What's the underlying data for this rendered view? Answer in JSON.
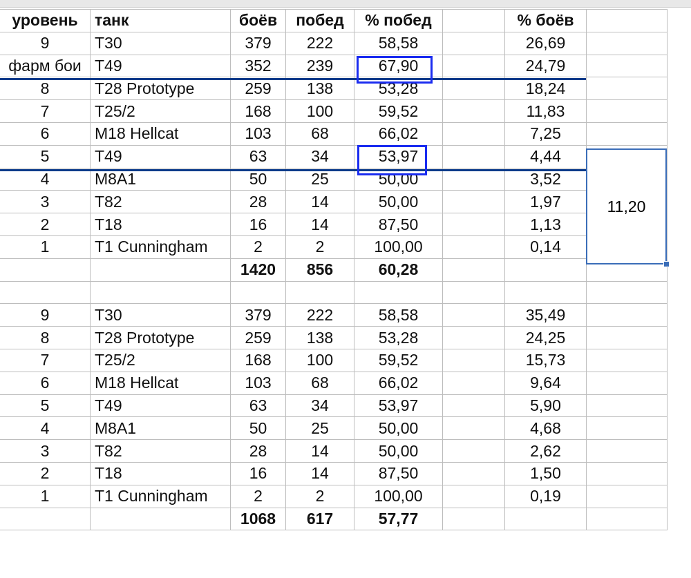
{
  "headers": [
    "уровень",
    "танк",
    "боёв",
    "побед",
    "% побед",
    "",
    "% боёв",
    ""
  ],
  "rows": [
    [
      "9",
      "T30",
      "379",
      "222",
      "58,58",
      "",
      "26,69",
      ""
    ],
    [
      "фарм бои",
      "T49",
      "352",
      "239",
      "67,90",
      "",
      "24,79",
      ""
    ],
    [
      "8",
      "T28 Prototype",
      "259",
      "138",
      "53,28",
      "",
      "18,24",
      ""
    ],
    [
      "7",
      "T25/2",
      "168",
      "100",
      "59,52",
      "",
      "11,83",
      ""
    ],
    [
      "6",
      "M18 Hellcat",
      "103",
      "68",
      "66,02",
      "",
      "7,25",
      ""
    ],
    [
      "5",
      "T49",
      "63",
      "34",
      "53,97",
      "",
      "4,44",
      ""
    ],
    [
      "4",
      "M8A1",
      "50",
      "25",
      "50,00",
      "",
      "3,52",
      ""
    ],
    [
      "3",
      "T82",
      "28",
      "14",
      "50,00",
      "",
      "1,97",
      ""
    ],
    [
      "2",
      "T18",
      "16",
      "14",
      "87,50",
      "",
      "1,13",
      ""
    ],
    [
      "1",
      "T1 Cunningham",
      "2",
      "2",
      "100,00",
      "",
      "0,14",
      ""
    ],
    [
      "",
      "",
      "1420",
      "856",
      "60,28",
      "",
      "",
      ""
    ],
    [
      "",
      "",
      "",
      "",
      "",
      "",
      "",
      ""
    ],
    [
      "9",
      "T30",
      "379",
      "222",
      "58,58",
      "",
      "35,49",
      ""
    ],
    [
      "8",
      "T28 Prototype",
      "259",
      "138",
      "53,28",
      "",
      "24,25",
      ""
    ],
    [
      "7",
      "T25/2",
      "168",
      "100",
      "59,52",
      "",
      "15,73",
      ""
    ],
    [
      "6",
      "M18 Hellcat",
      "103",
      "68",
      "66,02",
      "",
      "9,64",
      ""
    ],
    [
      "5",
      "T49",
      "63",
      "34",
      "53,97",
      "",
      "5,90",
      ""
    ],
    [
      "4",
      "M8A1",
      "50",
      "25",
      "50,00",
      "",
      "4,68",
      ""
    ],
    [
      "3",
      "T82",
      "28",
      "14",
      "50,00",
      "",
      "2,62",
      ""
    ],
    [
      "2",
      "T18",
      "16",
      "14",
      "87,50",
      "",
      "1,50",
      ""
    ],
    [
      "1",
      "T1 Cunningham",
      "2",
      "2",
      "100,00",
      "",
      "0,19",
      ""
    ],
    [
      "",
      "",
      "1068",
      "617",
      "57,77",
      "",
      "",
      ""
    ]
  ],
  "total_rows": [
    10,
    21
  ],
  "selected_cell_value": "11,20",
  "colors": {
    "highlight_box": "#1a2cf0",
    "separator_line": "#0a3a8a",
    "selection": "#3a6db8"
  }
}
